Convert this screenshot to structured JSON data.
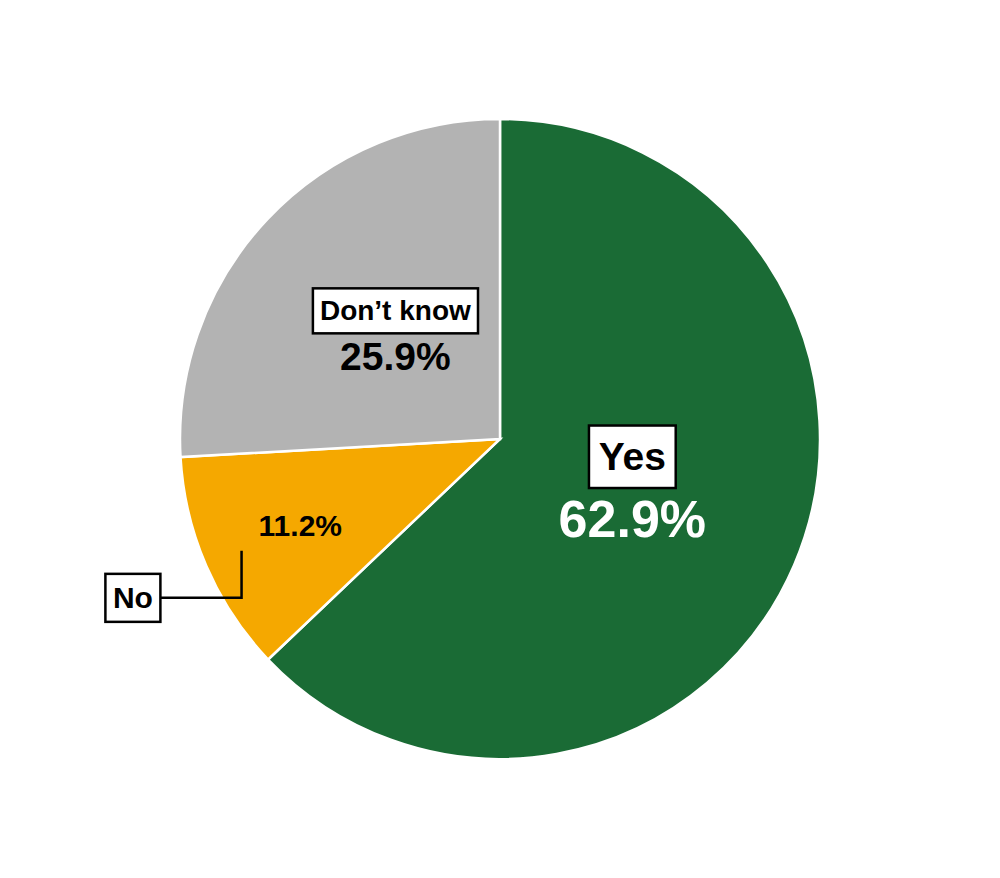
{
  "chart_data": {
    "type": "pie",
    "categories": [
      "Yes",
      "No",
      "Don’t know"
    ],
    "values": [
      62.9,
      11.2,
      25.9
    ],
    "value_labels": [
      "62.9%",
      "11.2%",
      "25.9%"
    ],
    "colors": [
      "#1a6b35",
      "#f5a800",
      "#b3b3b3"
    ],
    "data_labels": true
  }
}
